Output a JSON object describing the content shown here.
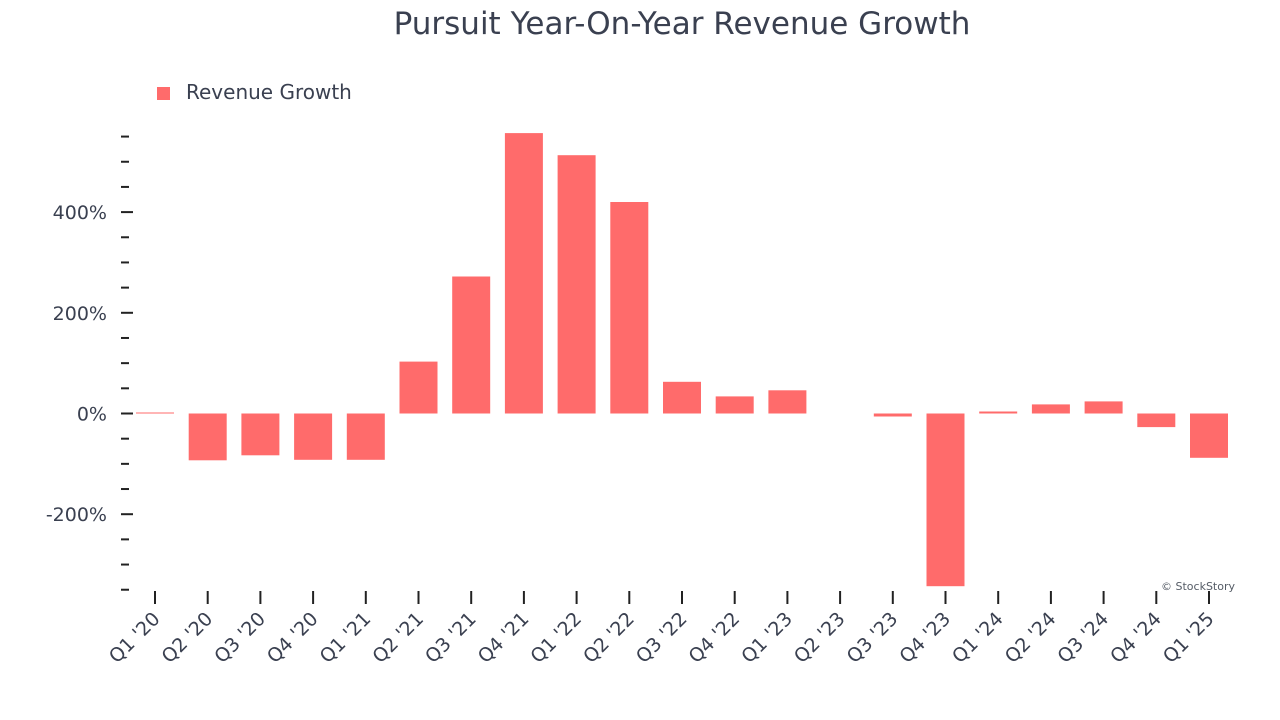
{
  "chart_data": {
    "type": "bar",
    "title": "Pursuit Year-On-Year Revenue Growth",
    "xlabel": "",
    "ylabel": "",
    "categories": [
      "Q1 '20",
      "Q2 '20",
      "Q3 '20",
      "Q4 '20",
      "Q1 '21",
      "Q2 '21",
      "Q3 '21",
      "Q4 '21",
      "Q1 '22",
      "Q2 '22",
      "Q3 '22",
      "Q4 '22",
      "Q1 '23",
      "Q2 '23",
      "Q3 '23",
      "Q4 '23",
      "Q1 '24",
      "Q2 '24",
      "Q3 '24",
      "Q4 '24",
      "Q1 '25"
    ],
    "series": [
      {
        "name": "Revenue Growth",
        "color": "#ff6b6b",
        "values": [
          2,
          -93,
          -83,
          -92,
          -92,
          103,
          272,
          557,
          513,
          420,
          63,
          34,
          46,
          0,
          -6,
          -343,
          4,
          18,
          24,
          -27,
          -88
        ]
      }
    ],
    "ylim": [
      -360,
      555
    ],
    "yticks": [
      -200,
      0,
      200,
      400
    ],
    "ytick_labels": [
      "-200%",
      "0%",
      "200%",
      "400%"
    ],
    "legend": "top-left",
    "grid": false,
    "watermark": "© StockStory"
  }
}
